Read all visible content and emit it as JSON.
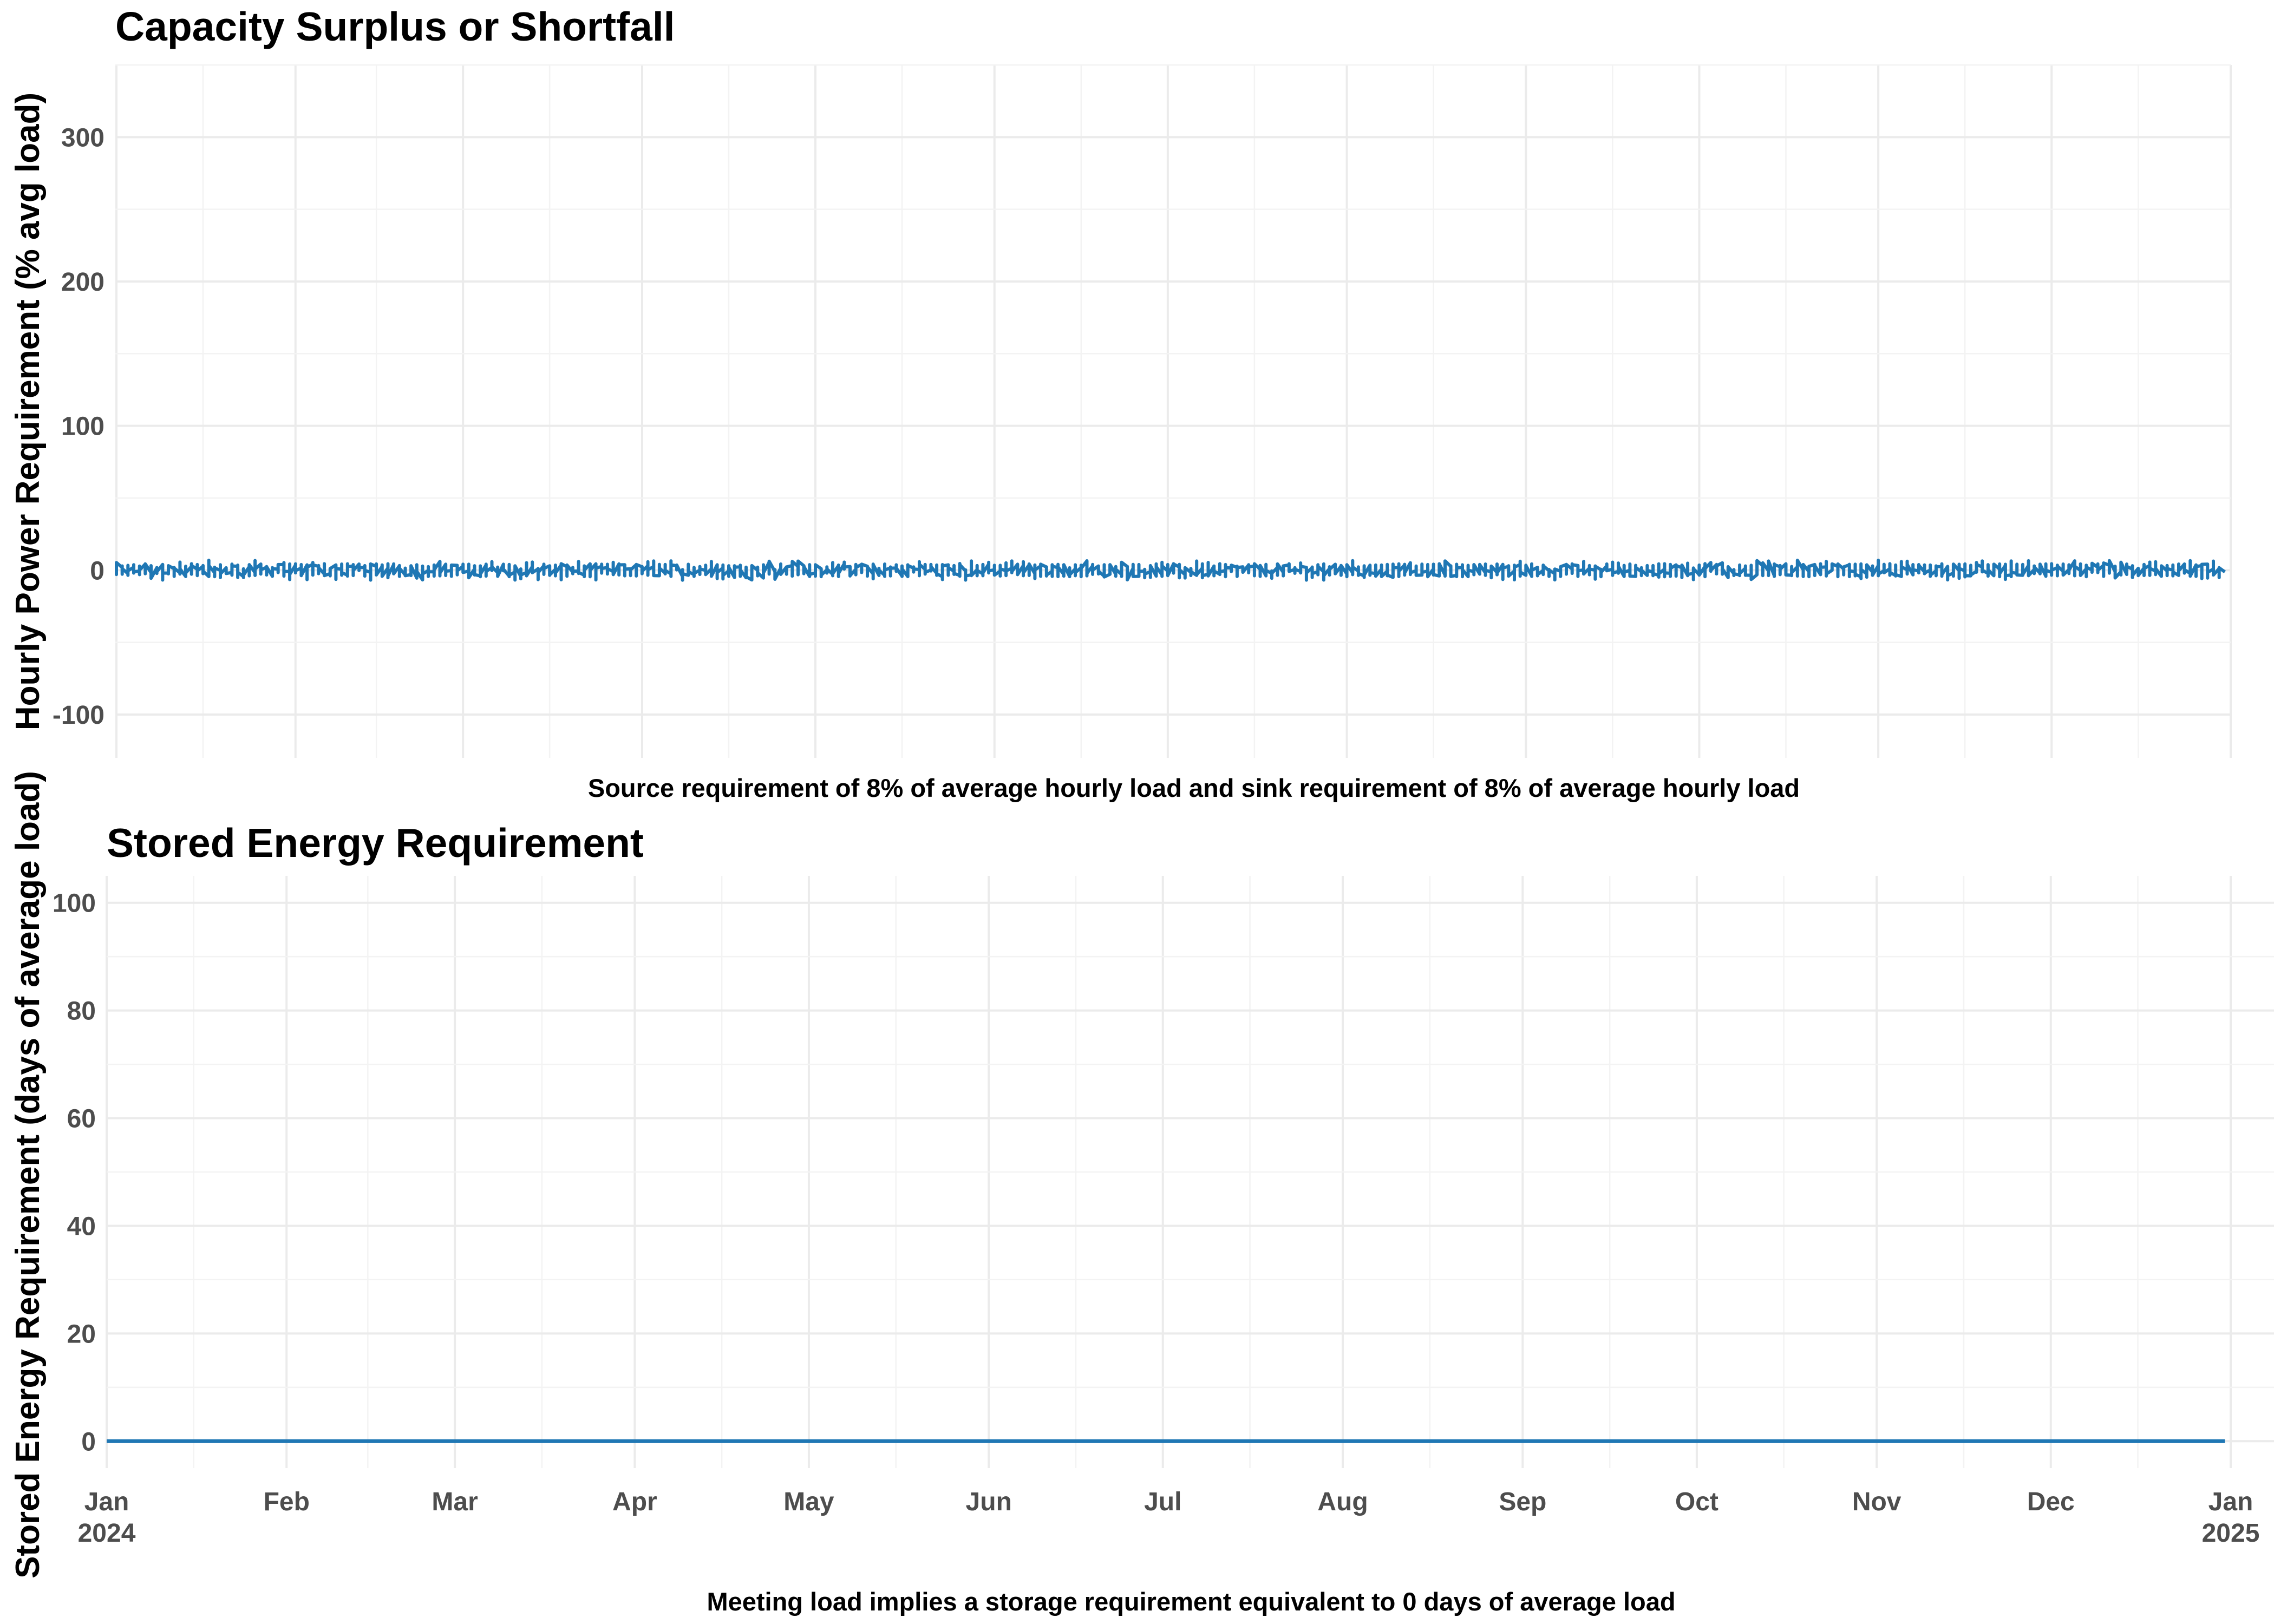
{
  "colors": {
    "line": "#1f77b4",
    "text": "#000000",
    "tick": "#4d4d4d",
    "grid_major": "#ebebeb",
    "grid_minor": "#f3f3f3"
  },
  "chart_data": [
    {
      "type": "line",
      "title": "Capacity Surplus or Shortfall",
      "subtitle": "",
      "xlabel": "",
      "ylabel": "Hourly Power Requirement (% avg load)",
      "caption": "Source requirement of 8% of average hourly load and sink requirement of 8% of average hourly load",
      "xlim": [
        "2024-01-01",
        "2025-01-01"
      ],
      "ylim": [
        -130,
        350
      ],
      "y_ticks": [
        "-100",
        "0",
        "100",
        "200",
        "300"
      ],
      "x_tick_labels": [],
      "grid": true,
      "legend": "none",
      "series": [
        {
          "description_of_values": "hourly values fluctuating between about -6 and +6 around 0 for the whole year",
          "x": [
            "2024-01-01",
            "2024-12-31"
          ],
          "y": [
            0,
            0
          ],
          "band": [
            -6,
            6
          ]
        }
      ]
    },
    {
      "type": "line",
      "title": "Stored Energy Requirement",
      "subtitle": "",
      "xlabel": "",
      "ylabel": "Stored Energy Requirement (days of average load)",
      "caption": "Meeting load implies a storage requirement equivalent to 0 days of average load",
      "xlim": [
        "2024-01-01",
        "2025-01-01"
      ],
      "ylim": [
        -5,
        105
      ],
      "y_ticks": [
        "0",
        "20",
        "40",
        "60",
        "80",
        "100"
      ],
      "x_tick_labels": [
        [
          "Jan",
          "2024"
        ],
        [
          "Feb",
          ""
        ],
        [
          "Mar",
          ""
        ],
        [
          "Apr",
          ""
        ],
        [
          "May",
          ""
        ],
        [
          "Jun",
          ""
        ],
        [
          "Jul",
          ""
        ],
        [
          "Aug",
          ""
        ],
        [
          "Sep",
          ""
        ],
        [
          "Oct",
          ""
        ],
        [
          "Nov",
          ""
        ],
        [
          "Dec",
          ""
        ],
        [
          "Jan",
          "2025"
        ]
      ],
      "grid": true,
      "legend": "none",
      "series": [
        {
          "x": [
            "2024-01-01",
            "2024-12-31"
          ],
          "y": [
            0,
            0
          ]
        }
      ]
    }
  ]
}
